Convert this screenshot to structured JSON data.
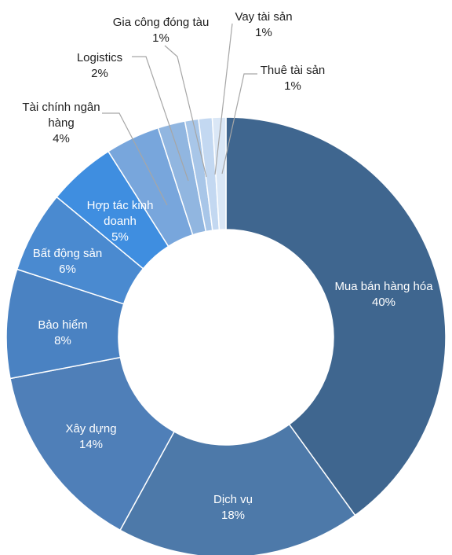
{
  "chart_data": {
    "type": "pie",
    "subtype": "donut",
    "title": "",
    "categories": [
      "Mua bán hàng hóa",
      "Dịch vụ",
      "Xây dựng",
      "Bảo hiểm",
      "Bất động sản",
      "Hợp tác kinh doanh",
      "Tài chính ngân hàng",
      "Logistics",
      "Gia công đóng tàu",
      "Vay tài sản",
      "Thuê tài sản"
    ],
    "values": [
      40,
      18,
      14,
      8,
      6,
      5,
      4,
      2,
      1,
      1,
      1
    ],
    "value_labels": [
      "40%",
      "18%",
      "14%",
      "8%",
      "6%",
      "5%",
      "4%",
      "2%",
      "1%",
      "1%",
      "1%"
    ],
    "colors": [
      "#3f668f",
      "#4d79a9",
      "#4f7fb8",
      "#4a82c2",
      "#4a8ad0",
      "#3f8ee0",
      "#78a6dc",
      "#91b6e0",
      "#a8c6e8",
      "#c3d8f1",
      "#dae7f6"
    ],
    "legend": "none"
  }
}
